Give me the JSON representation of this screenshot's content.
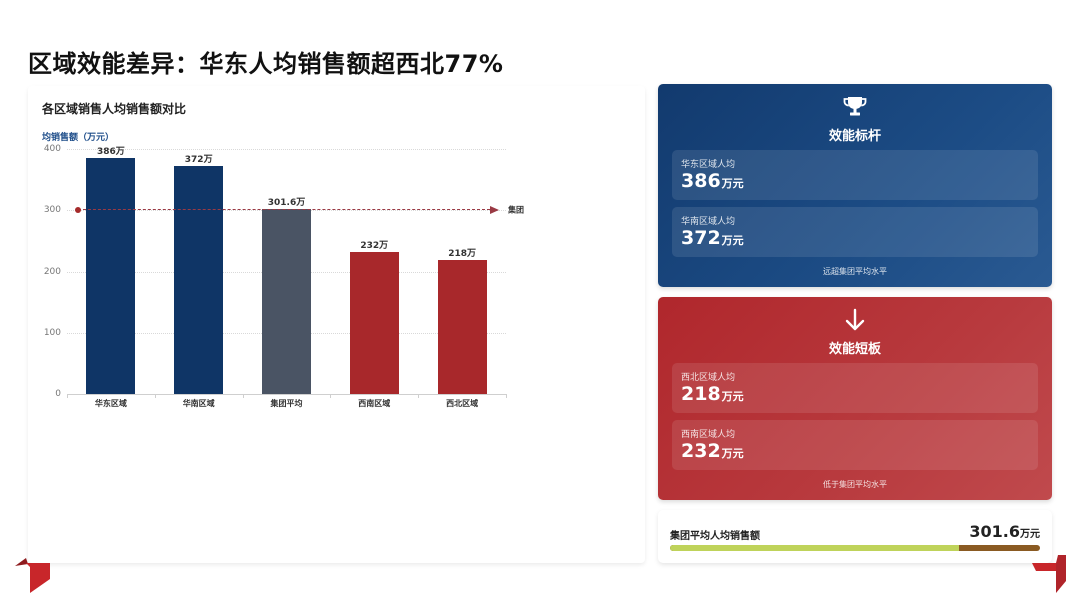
{
  "page": {
    "title": "区域效能差异：华东人均销售额超西北77%"
  },
  "chart_card": {
    "title": "各区域销售人均销售额对比",
    "y_unit_label": "均销售额（万元）",
    "avg_label": "集团"
  },
  "chart_data": {
    "type": "bar",
    "title": "各区域销售人均销售额对比",
    "xlabel": "",
    "ylabel": "均销售额（万元）",
    "categories": [
      "华东区域",
      "华南区域",
      "集团平均",
      "西南区域",
      "西北区域"
    ],
    "values": [
      386,
      372,
      301.6,
      232,
      218
    ],
    "value_labels": [
      "386万",
      "372万",
      "301.6万",
      "232万",
      "218万"
    ],
    "bar_colors": [
      "#0f3566",
      "#0f3566",
      "#4a5464",
      "#a8282b",
      "#a8282b"
    ],
    "ylim": [
      0,
      400
    ],
    "yticks": [
      0,
      100,
      200,
      300,
      400
    ],
    "grid": true,
    "reference_line": {
      "value": 300,
      "label": "集团",
      "style": "dashed",
      "color": "#9a3a44"
    },
    "legend": null
  },
  "benchmark_panel": {
    "icon": "trophy-icon",
    "heading": "效能标杆",
    "items": [
      {
        "label": "华东区域人均",
        "value": "386",
        "unit": "万元"
      },
      {
        "label": "华南区域人均",
        "value": "372",
        "unit": "万元"
      }
    ],
    "note": "远超集团平均水平",
    "color": "#123a6e"
  },
  "weakness_panel": {
    "icon": "arrow-down-icon",
    "heading": "效能短板",
    "items": [
      {
        "label": "西北区域人均",
        "value": "218",
        "unit": "万元"
      },
      {
        "label": "西南区域人均",
        "value": "232",
        "unit": "万元"
      }
    ],
    "note": "低于集团平均水平",
    "color": "#b0272c"
  },
  "average_card": {
    "label": "集团平均人均销售额",
    "value": "301.6",
    "unit": "万元",
    "progress_percent": 78,
    "fill_color": "#bfd35a",
    "track_color": "#8a5a22"
  }
}
